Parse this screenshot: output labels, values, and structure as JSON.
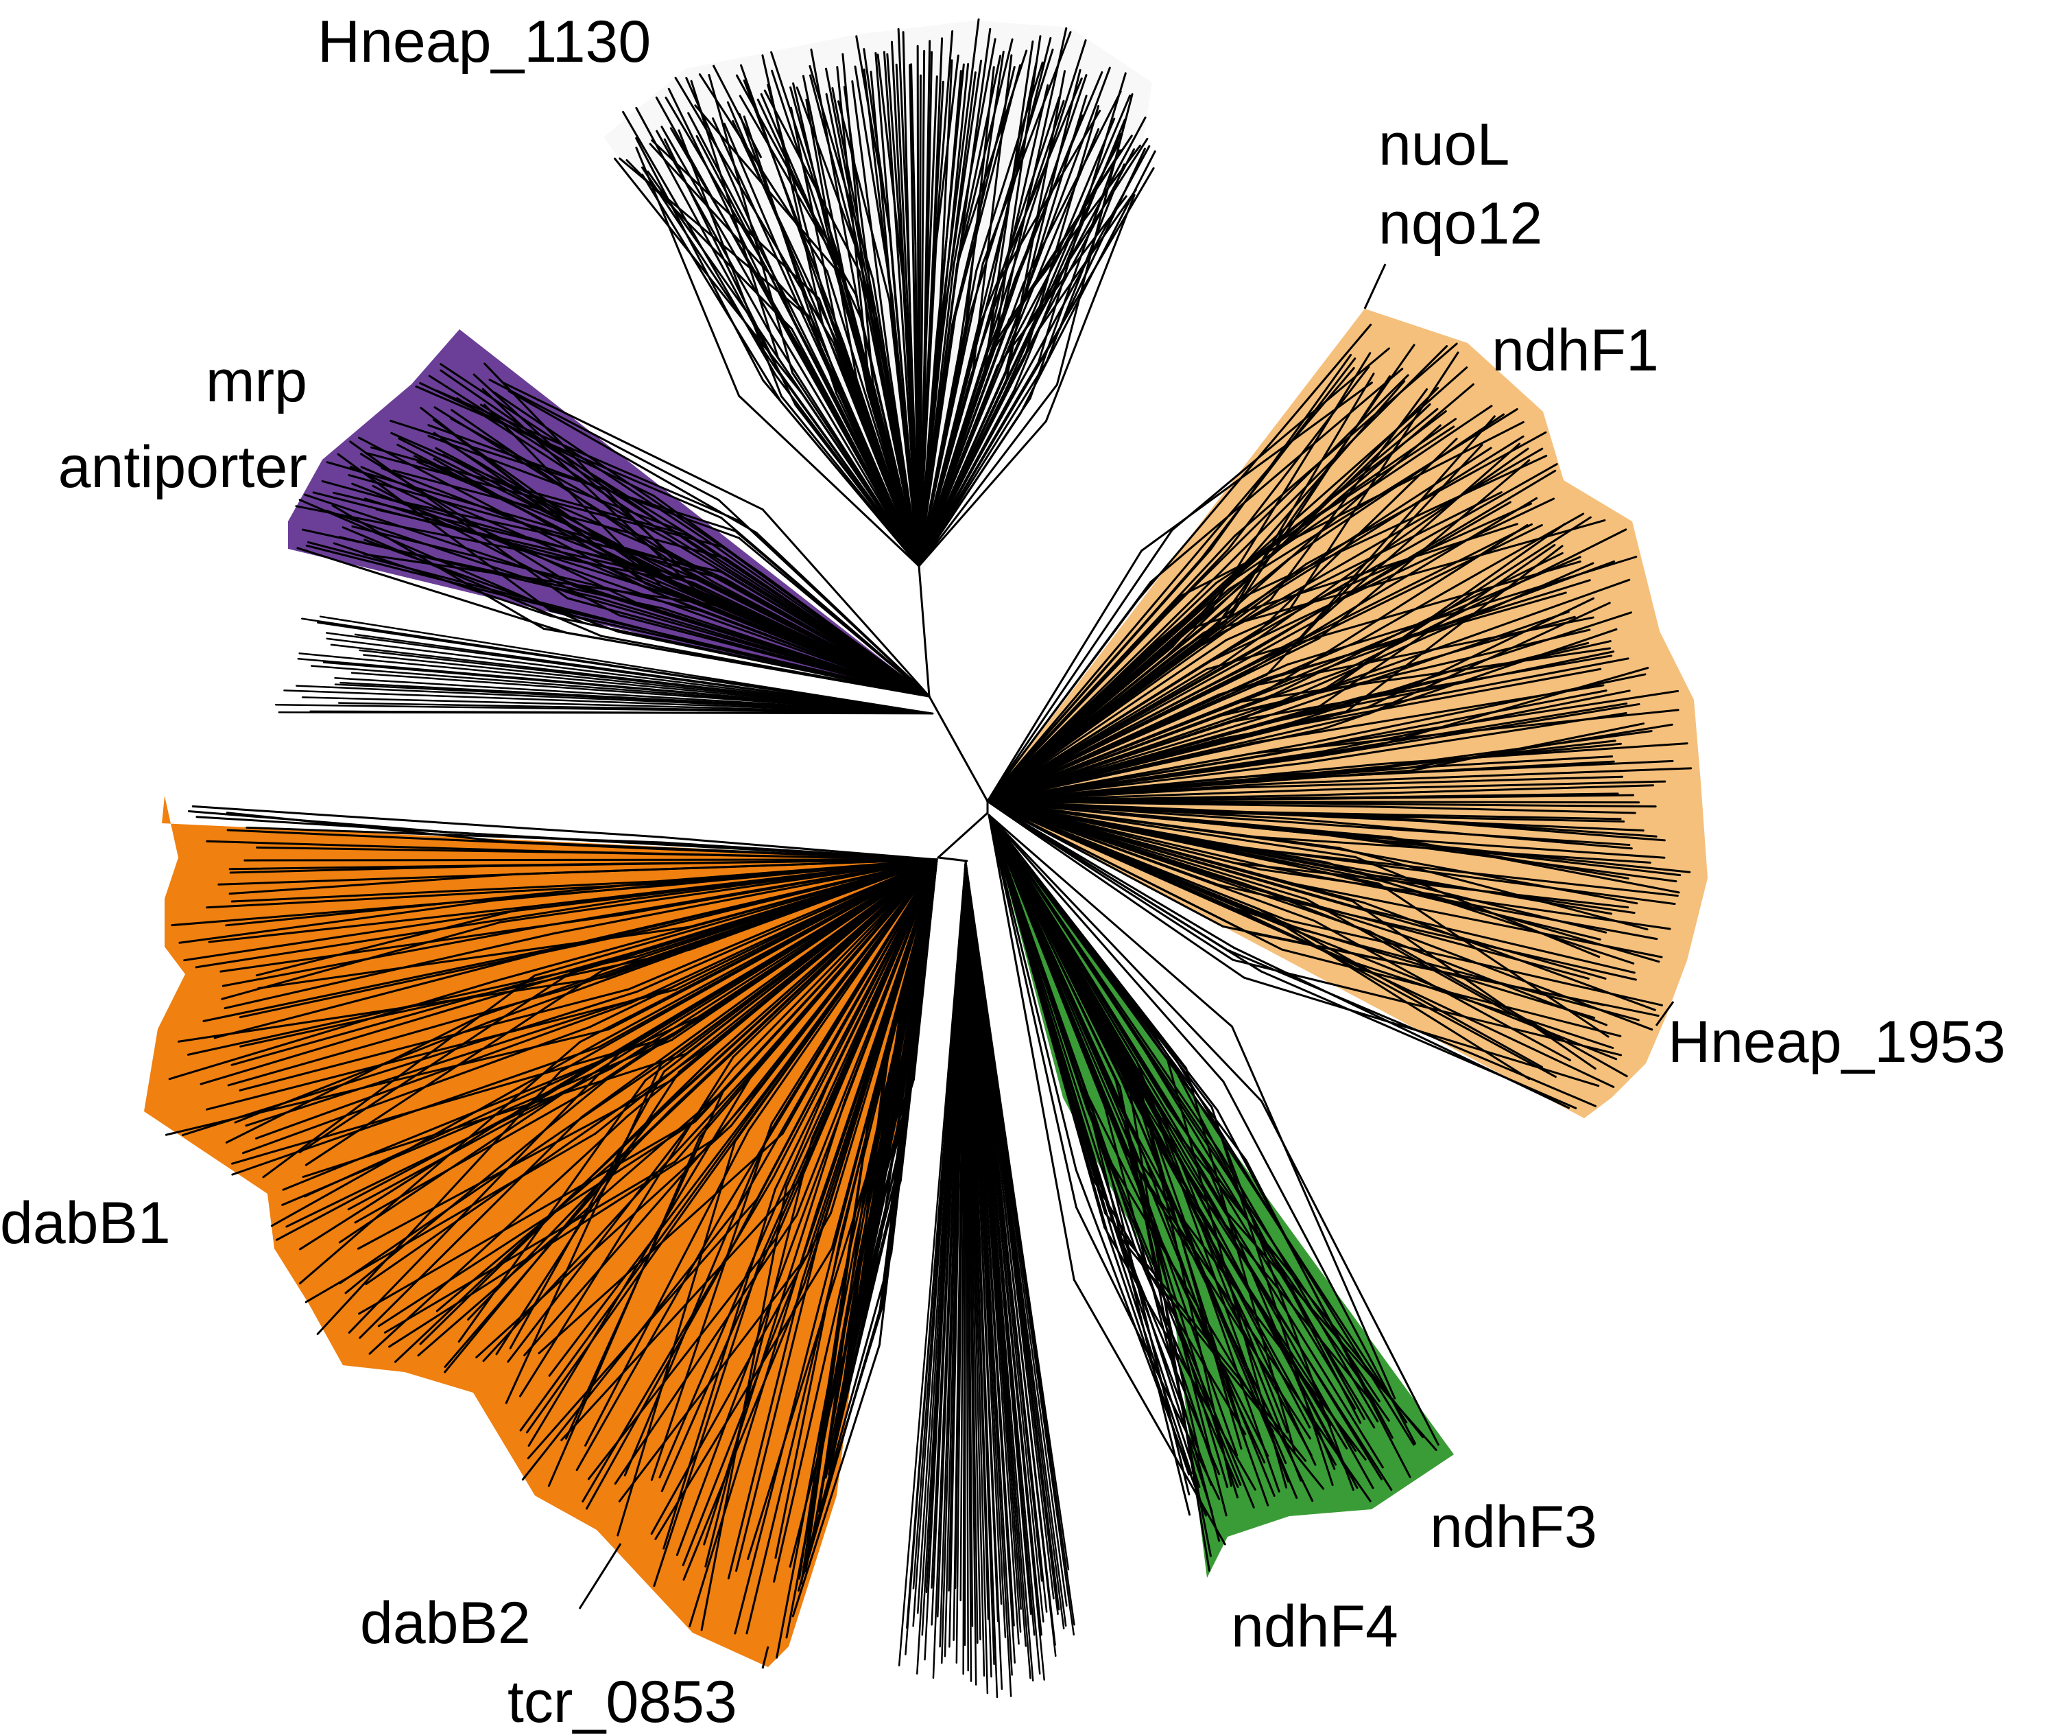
{
  "colors": {
    "background": "#ffffff",
    "branch": "#000000",
    "clade_unshaded": "#f8f8f8",
    "clade_mrp": "#6b3f98",
    "clade_nuo_ndhF1": "#f5c07c",
    "clade_ndhF3_ndhF4": "#3a9c36",
    "clade_dabB": "#f0800f"
  },
  "labels": {
    "hneap_1130": "Hneap_1130",
    "nuoL": "nuoL",
    "nqo12": "nqo12",
    "ndhF1": "ndhF1",
    "mrp": "mrp",
    "antiporter": "antiporter",
    "hneap_1953": "Hneap_1953",
    "dabB1": "dabB1",
    "dabB2": "dabB2",
    "tcr_0853": "tcr_0853",
    "ndhF3": "ndhF3",
    "ndhF4": "ndhF4"
  }
}
